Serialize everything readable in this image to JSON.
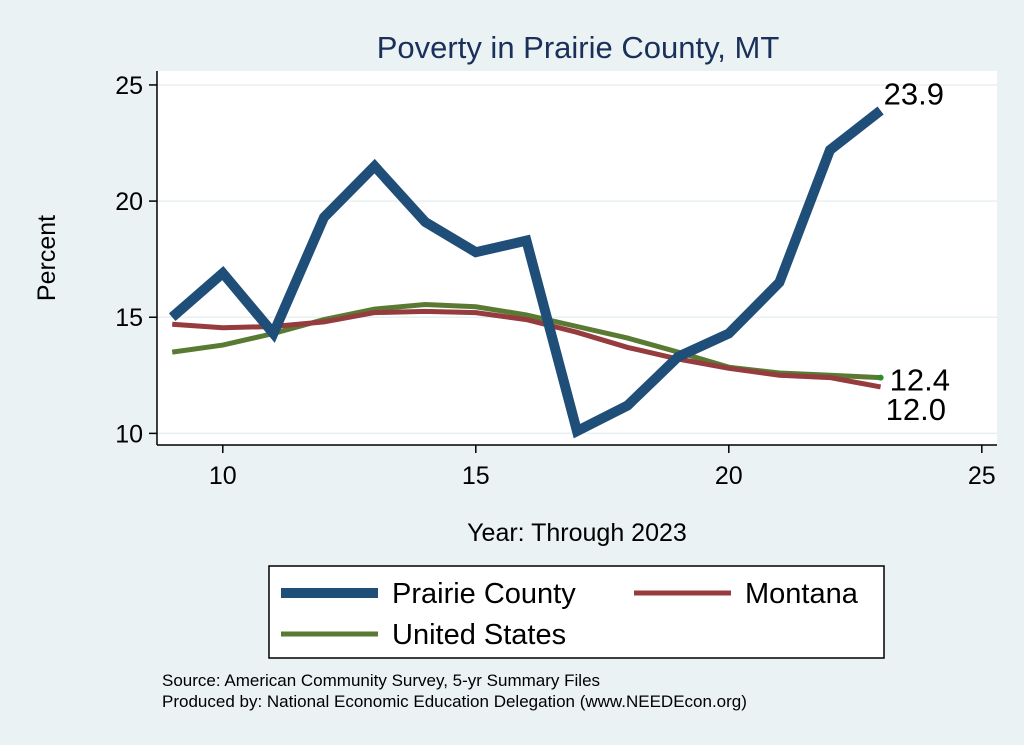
{
  "chart_data": {
    "type": "line",
    "title": "Poverty in Prairie County, MT",
    "xlabel": "Year: Through 2023",
    "ylabel": "Percent",
    "xlim": [
      8.7,
      25.3
    ],
    "ylim": [
      9.5,
      25.6
    ],
    "xticks": [
      10,
      15,
      20,
      25
    ],
    "yticks": [
      10,
      15,
      20,
      25
    ],
    "grid": true,
    "legend_position": "bottom",
    "series": [
      {
        "name": "Prairie County",
        "color": "#1f4e79",
        "x": [
          9,
          10,
          11,
          12,
          13,
          14,
          15,
          16,
          17,
          18,
          19,
          20,
          21,
          22,
          23
        ],
        "y": [
          15.0,
          16.9,
          14.3,
          19.3,
          21.5,
          19.1,
          17.8,
          18.3,
          10.1,
          11.2,
          13.3,
          14.3,
          16.5,
          22.2,
          23.9
        ],
        "end_label": "23.9"
      },
      {
        "name": "Montana",
        "color": "#963b3e",
        "x": [
          9,
          10,
          11,
          12,
          13,
          14,
          15,
          16,
          17,
          18,
          19,
          20,
          21,
          22,
          23
        ],
        "y": [
          14.7,
          14.55,
          14.6,
          14.8,
          15.2,
          15.25,
          15.2,
          14.9,
          14.35,
          13.7,
          13.2,
          12.8,
          12.5,
          12.4,
          12.0
        ],
        "end_label": "12.0"
      },
      {
        "name": "United States",
        "color": "#5a7a34",
        "x": [
          9,
          10,
          11,
          12,
          13,
          14,
          15,
          16,
          17,
          18,
          19,
          20,
          21,
          22,
          23
        ],
        "y": [
          13.5,
          13.8,
          14.3,
          14.9,
          15.35,
          15.55,
          15.45,
          15.1,
          14.6,
          14.1,
          13.5,
          12.85,
          12.6,
          12.5,
          12.4
        ],
        "end_label": "12.4"
      }
    ],
    "legend_order": [
      "Prairie County",
      "Montana",
      "United States"
    ],
    "notes": [
      "Source: American Community Survey, 5-yr Summary Files",
      "Produced by: National Economic Education Delegation (www.NEEDEcon.org)"
    ]
  },
  "colors": {
    "figure_background": "#eaf2f3",
    "plot_background": "#ffffff",
    "grid": "#e7eff1",
    "title": "#1a2f5a",
    "us_endpoint_marker": "#2e8b2e"
  }
}
